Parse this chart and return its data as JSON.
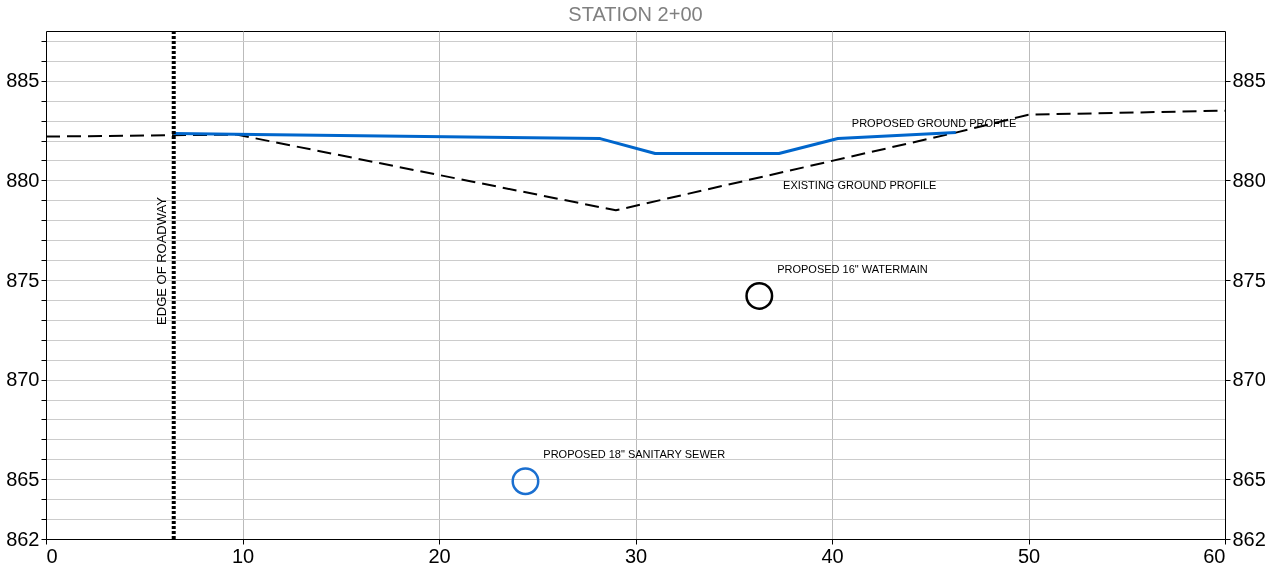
{
  "chart_data": {
    "type": "line",
    "title": "STATION 2+00",
    "series": [
      {
        "type": "line",
        "color": "#000000",
        "line_style": "dashed",
        "x": [
          0,
          9.7,
          29,
          46.3,
          50,
          60
        ],
        "values": [
          882.2,
          882.3,
          878.5,
          882.4,
          883.3,
          883.5
        ]
      },
      {
        "type": "line",
        "color": "#0066cc",
        "line_style": "solid",
        "x": [
          6.5,
          28.2,
          31,
          37.3,
          40.3,
          46.3
        ],
        "values": [
          882.35,
          882.1,
          881.35,
          881.35,
          882.1,
          882.4
        ]
      },
      {
        "type": "scatter",
        "color": "#000000",
        "marker": "circle",
        "x": [
          36.3
        ],
        "values": [
          874.2
        ]
      },
      {
        "type": "scatter",
        "color": "#1a6fd0",
        "marker": "circle",
        "x": [
          24.4
        ],
        "values": [
          864.9
        ]
      }
    ],
    "xlim": [
      0,
      60
    ],
    "xticks": [
      0,
      10,
      20,
      30,
      40,
      50,
      60
    ],
    "ylim": [
      862,
      887.5
    ],
    "yticks": [
      862,
      {
        "value": 863,
        "label": null
      },
      {
        "value": 864,
        "label": null
      },
      865,
      {
        "value": 866,
        "label": null
      },
      {
        "value": 867,
        "label": null
      },
      {
        "value": 868,
        "label": null
      },
      {
        "value": 869,
        "label": null
      },
      870,
      {
        "value": 871,
        "label": null
      },
      {
        "value": 872,
        "label": null
      },
      {
        "value": 873,
        "label": null
      },
      {
        "value": 874,
        "label": null
      },
      875,
      {
        "value": 876,
        "label": null
      },
      {
        "value": 877,
        "label": null
      },
      {
        "value": 878,
        "label": null
      },
      {
        "value": 879,
        "label": null
      },
      880,
      {
        "value": 881,
        "label": null
      },
      {
        "value": 882,
        "label": null
      },
      {
        "value": 883,
        "label": null
      },
      {
        "value": 884,
        "label": null
      },
      885,
      {
        "value": 886,
        "label": null
      },
      {
        "value": 887,
        "label": null
      }
    ],
    "y2lim": [
      862,
      887.5
    ],
    "y2ticks": [
      862,
      865,
      870,
      875,
      880,
      885
    ],
    "ref_lines": [
      {
        "axis": "x",
        "value": 6.5,
        "label": "EDGE OF ROADWAY",
        "color": "#000000",
        "line_style": "dotted"
      }
    ],
    "annotations": [
      {
        "text": "PROPOSED GROUND PROFILE",
        "x": 40.5,
        "y": 882.15
      },
      {
        "text": "EXISTING GROUND PROFILE",
        "x": 37,
        "y": 880.3
      },
      {
        "text": "PROPOSED 16\" WATERMAIN",
        "x": 36.7,
        "y": 874.8
      },
      {
        "text": "PROPOSED 18\" SANITARY SEWER",
        "x": 24.8,
        "y": 865.5
      }
    ],
    "grid": true
  }
}
